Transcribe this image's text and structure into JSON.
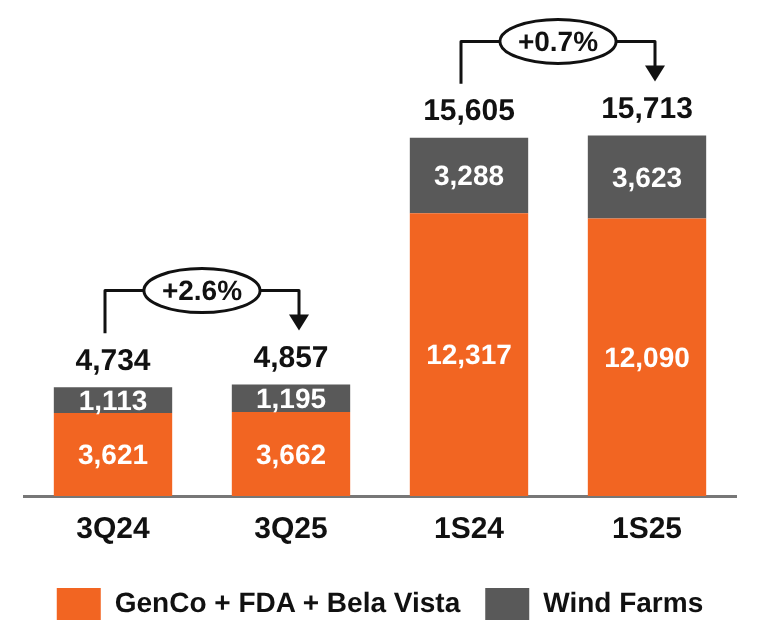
{
  "chart_data": {
    "type": "bar",
    "stacked": true,
    "categories": [
      "3Q24",
      "3Q25",
      "1S24",
      "1S25"
    ],
    "series": [
      {
        "name": "GenCo + FDA + Bela Vista",
        "color": "#f26522",
        "values": [
          3621,
          3662,
          12317,
          12090
        ],
        "value_labels": [
          "3,621",
          "3,662",
          "12,317",
          "12,090"
        ]
      },
      {
        "name": "Wind Farms",
        "color": "#595959",
        "values": [
          1113,
          1195,
          3288,
          3623
        ],
        "value_labels": [
          "1,113",
          "1,195",
          "3,288",
          "3,623"
        ]
      }
    ],
    "totals": [
      "4,734",
      "4,857",
      "15,605",
      "15,713"
    ],
    "annotations": [
      "+2.6%",
      "+0.7%"
    ],
    "grid": false,
    "legend": "bottom"
  }
}
